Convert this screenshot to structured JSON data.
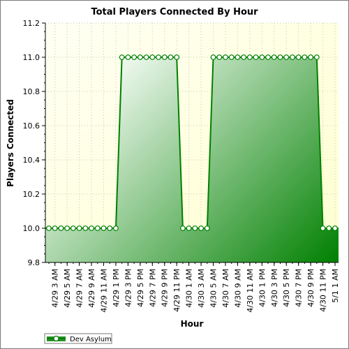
{
  "chart_data": {
    "type": "area",
    "title": "Total Players Connected By Hour",
    "xlabel": "Hour",
    "ylabel": "Players Connected",
    "ylim": [
      9.8,
      11.2
    ],
    "yticks": [
      "9.8",
      "10.0",
      "10.2",
      "10.4",
      "10.6",
      "10.8",
      "11.0",
      "11.2"
    ],
    "xtick_labels": [
      "4/29 3 AM",
      "4/29 5 AM",
      "4/29 7 AM",
      "4/29 9 AM",
      "4/29 11 AM",
      "4/29 1 PM",
      "4/29 3 PM",
      "4/29 5 PM",
      "4/29 7 PM",
      "4/29 9 PM",
      "4/29 11 PM",
      "4/30 1 AM",
      "4/30 3 AM",
      "4/30 5 AM",
      "4/30 7 AM",
      "4/30 9 AM",
      "4/30 11 AM",
      "4/30 1 PM",
      "4/30 3 PM",
      "4/30 5 PM",
      "4/30 7 PM",
      "4/30 9 PM",
      "4/30 11 PM",
      "5/1 1 AM"
    ],
    "grid": true,
    "legend_position": "bottom-left",
    "series": [
      {
        "name": "Dev Asylum",
        "color": "#008000",
        "values": [
          10,
          10,
          10,
          10,
          10,
          10,
          10,
          10,
          10,
          10,
          10,
          10,
          11,
          11,
          11,
          11,
          11,
          11,
          11,
          11,
          11,
          11,
          10,
          10,
          10,
          10,
          10,
          11,
          11,
          11,
          11,
          11,
          11,
          11,
          11,
          11,
          11,
          11,
          11,
          11,
          11,
          11,
          11,
          11,
          11,
          10,
          10,
          10
        ]
      }
    ]
  },
  "colors": {
    "plot_bg_start": "#fffff0",
    "plot_bg_end": "#ffffd0",
    "fill_light": "#f4fbf4",
    "fill_dark": "#008000",
    "line": "#008000"
  }
}
